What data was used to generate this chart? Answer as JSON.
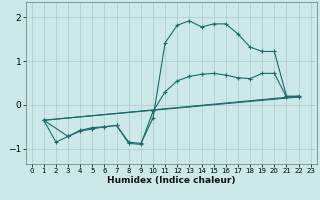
{
  "xlabel": "Humidex (Indice chaleur)",
  "bg_color": "#cce8e8",
  "grid_color": "#aacccc",
  "line_color": "#1a6b6b",
  "xlim": [
    -0.5,
    23.5
  ],
  "ylim": [
    -1.35,
    2.35
  ],
  "xticks": [
    0,
    1,
    2,
    3,
    4,
    5,
    6,
    7,
    8,
    9,
    10,
    11,
    12,
    13,
    14,
    15,
    16,
    17,
    18,
    19,
    20,
    21,
    22,
    23
  ],
  "yticks": [
    -1,
    0,
    1,
    2
  ],
  "line1_x": [
    1,
    2,
    3,
    4,
    5,
    6,
    7,
    8,
    9,
    10,
    11,
    12,
    13,
    14,
    15,
    16,
    17,
    18,
    19,
    20,
    21,
    22
  ],
  "line1_y": [
    -0.35,
    -0.85,
    -0.72,
    -0.6,
    -0.55,
    -0.5,
    -0.47,
    -0.85,
    -0.88,
    -0.3,
    1.42,
    1.82,
    1.92,
    1.78,
    1.85,
    1.85,
    1.62,
    1.32,
    1.22,
    1.22,
    0.2,
    0.2
  ],
  "line2_x": [
    1,
    3,
    4,
    5,
    6,
    7,
    8,
    9,
    10,
    11,
    12,
    13,
    14,
    15,
    16,
    17,
    18,
    19,
    20,
    21,
    22
  ],
  "line2_y": [
    -0.35,
    -0.72,
    -0.58,
    -0.52,
    -0.5,
    -0.47,
    -0.88,
    -0.9,
    -0.15,
    0.3,
    0.55,
    0.65,
    0.7,
    0.72,
    0.68,
    0.62,
    0.6,
    0.72,
    0.72,
    0.18,
    0.18
  ],
  "line3_x": [
    1,
    22
  ],
  "line3_y": [
    -0.35,
    0.2
  ],
  "line4_x": [
    1,
    22
  ],
  "line4_y": [
    -0.35,
    0.18
  ]
}
